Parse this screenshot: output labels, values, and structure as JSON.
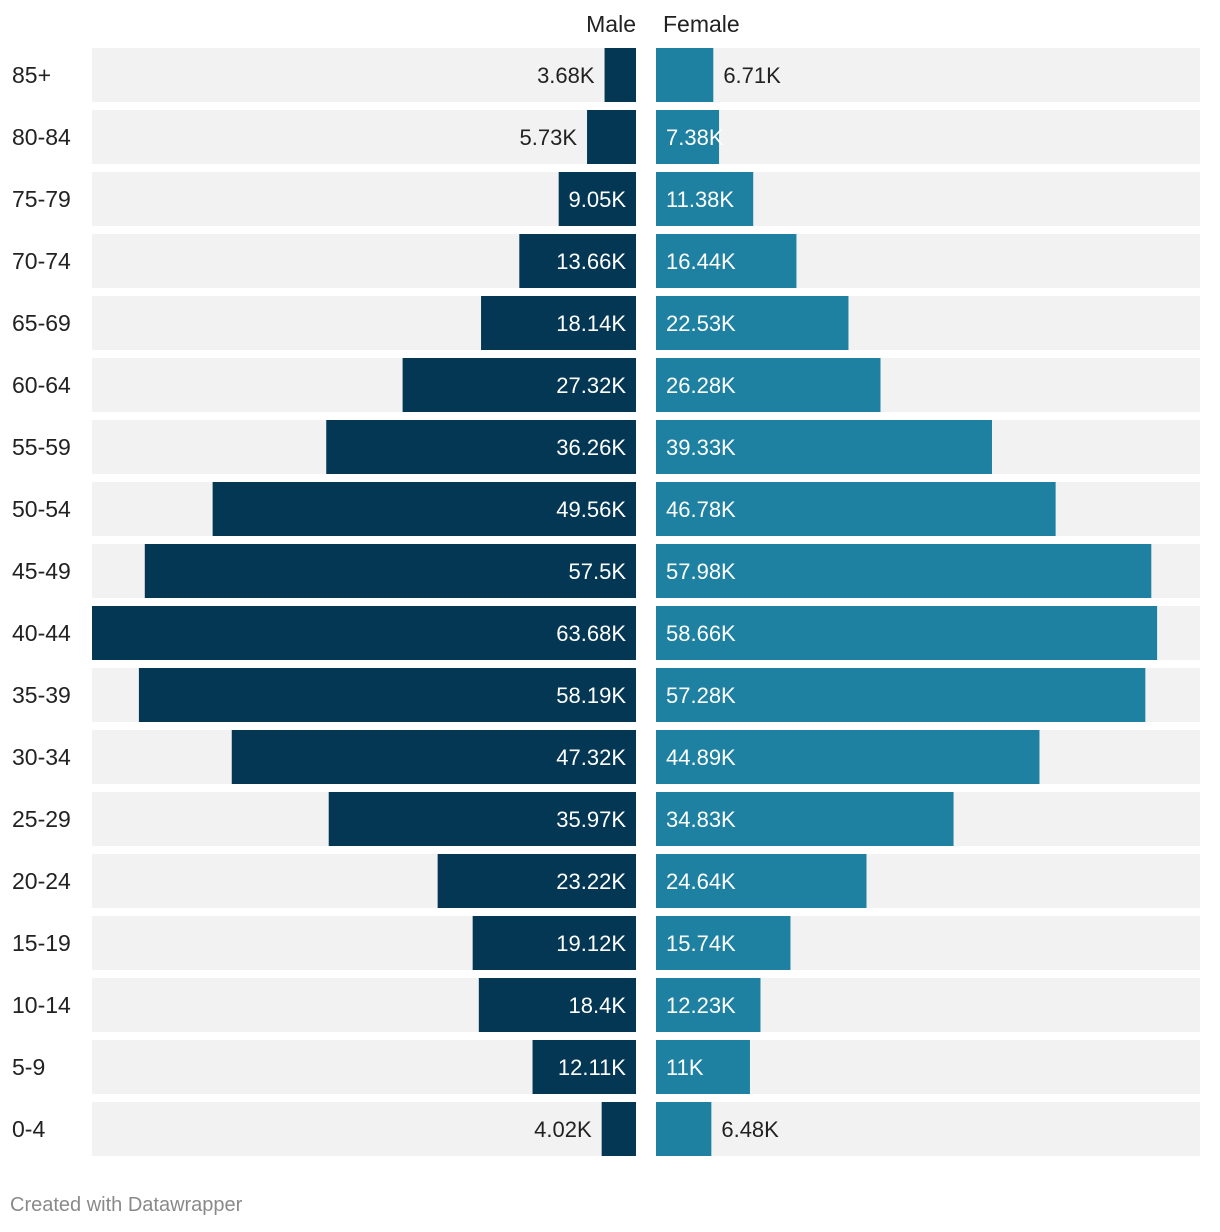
{
  "chart_data": {
    "type": "bar",
    "subtype": "population-pyramid",
    "categories": [
      "85+",
      "80-84",
      "75-79",
      "70-74",
      "65-69",
      "60-64",
      "55-59",
      "50-54",
      "45-49",
      "40-44",
      "35-39",
      "30-34",
      "25-29",
      "20-24",
      "15-19",
      "10-14",
      "5-9",
      "0-4"
    ],
    "series": [
      {
        "name": "Male",
        "color": "#033754",
        "values": [
          3.68,
          5.73,
          9.05,
          13.66,
          18.14,
          27.32,
          36.26,
          49.56,
          57.5,
          63.68,
          58.19,
          47.32,
          35.97,
          23.22,
          19.12,
          18.4,
          12.11,
          4.02
        ],
        "labels": [
          "3.68K",
          "5.73K",
          "9.05K",
          "13.66K",
          "18.14K",
          "27.32K",
          "36.26K",
          "49.56K",
          "57.5K",
          "63.68K",
          "58.19K",
          "47.32K",
          "35.97K",
          "23.22K",
          "19.12K",
          "18.4K",
          "12.11K",
          "4.02K"
        ]
      },
      {
        "name": "Female",
        "color": "#1e81a2",
        "values": [
          6.71,
          7.38,
          11.38,
          16.44,
          22.53,
          26.28,
          39.33,
          46.78,
          57.98,
          58.66,
          57.28,
          44.89,
          34.83,
          24.64,
          15.74,
          12.23,
          11,
          6.48
        ],
        "labels": [
          "6.71K",
          "7.38K",
          "11.38K",
          "16.44K",
          "22.53K",
          "26.28K",
          "39.33K",
          "46.78K",
          "57.98K",
          "58.66K",
          "57.28K",
          "44.89K",
          "34.83K",
          "24.64K",
          "15.74K",
          "12.23K",
          "11K",
          "6.48K"
        ]
      }
    ],
    "unit": "K",
    "xlim": [
      0,
      63.68
    ],
    "row_background": "#f2f2f2",
    "grid": false
  },
  "footer": {
    "credit": "Created with Datawrapper"
  }
}
